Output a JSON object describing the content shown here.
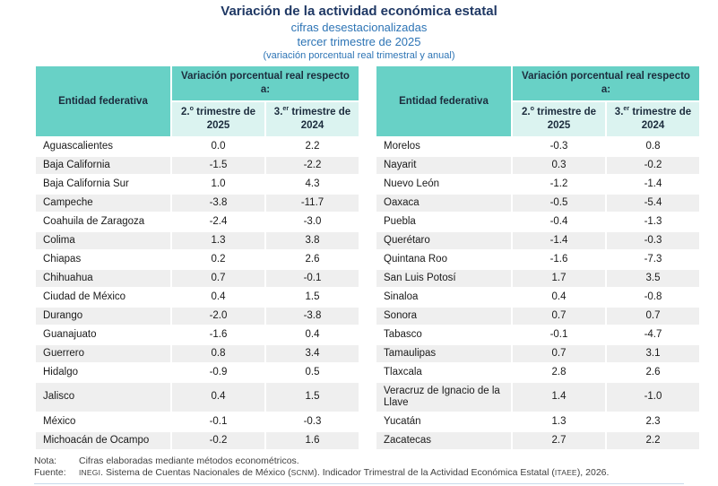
{
  "header": {
    "title": "Variación de la actividad económica estatal",
    "subtitle1": "cifras desestacionalizadas",
    "subtitle2": "tercer trimestre de 2025",
    "subtitle3": "(variación porcentual real trimestral y anual)"
  },
  "table_header": {
    "entity": "Entidad federativa",
    "group": "Variación porcentual real respecto a:",
    "q2": {
      "base": "2.",
      "sup": "o",
      "rest": "trimestre de 2025"
    },
    "q3": {
      "base": "3.",
      "sup": "er",
      "rest": "trimestre de 2024"
    }
  },
  "tables": [
    {
      "rows": [
        [
          "Aguascalientes",
          "0.0",
          "2.2"
        ],
        [
          "Baja California",
          "-1.5",
          "-2.2"
        ],
        [
          "Baja California Sur",
          "1.0",
          "4.3"
        ],
        [
          "Campeche",
          "-3.8",
          "-11.7"
        ],
        [
          "Coahuila de Zaragoza",
          "-2.4",
          "-3.0"
        ],
        [
          "Colima",
          "1.3",
          "3.8"
        ],
        [
          "Chiapas",
          "0.2",
          "2.6"
        ],
        [
          "Chihuahua",
          "0.7",
          "-0.1"
        ],
        [
          "Ciudad de México",
          "0.4",
          "1.5"
        ],
        [
          "Durango",
          "-2.0",
          "-3.8"
        ],
        [
          "Guanajuato",
          "-1.6",
          "0.4"
        ],
        [
          "Guerrero",
          "0.8",
          "3.4"
        ],
        [
          "Hidalgo",
          "-0.9",
          "0.5"
        ],
        [
          "Jalisco",
          "0.4",
          "1.5"
        ],
        [
          "México",
          "-0.1",
          "-0.3"
        ],
        [
          "Michoacán de Ocampo",
          "-0.2",
          "1.6"
        ]
      ]
    },
    {
      "rows": [
        [
          "Morelos",
          "-0.3",
          "0.8"
        ],
        [
          "Nayarit",
          "0.3",
          "-0.2"
        ],
        [
          "Nuevo León",
          "-1.2",
          "-1.4"
        ],
        [
          "Oaxaca",
          "-0.5",
          "-5.4"
        ],
        [
          "Puebla",
          "-0.4",
          "-1.3"
        ],
        [
          "Querétaro",
          "-1.4",
          "-0.3"
        ],
        [
          "Quintana Roo",
          "-1.6",
          "-7.3"
        ],
        [
          "San Luis Potosí",
          "1.7",
          "3.5"
        ],
        [
          "Sinaloa",
          "0.4",
          "-0.8"
        ],
        [
          "Sonora",
          "0.7",
          "0.7"
        ],
        [
          "Tabasco",
          "-0.1",
          "-4.7"
        ],
        [
          "Tamaulipas",
          "0.7",
          "3.1"
        ],
        [
          "Tlaxcala",
          "2.8",
          "2.6"
        ],
        [
          "Veracruz de Ignacio de la Llave",
          "1.4",
          "-1.0"
        ],
        [
          "Yucatán",
          "1.3",
          "2.3"
        ],
        [
          "Zacatecas",
          "2.7",
          "2.2"
        ]
      ]
    }
  ],
  "footer": {
    "nota_label": "Nota:",
    "nota_text": "Cifras elaboradas mediante métodos econométricos.",
    "fuente_label": "Fuente:",
    "fuente_parts": [
      "INEGI",
      ". Sistema de Cuentas Nacionales de México (",
      "SCNM",
      "). Indicador Trimestral de la Actividad Económica Estatal (",
      "ITAEE",
      "), 2026."
    ]
  },
  "colors": {
    "header_teal": "#68d1c6",
    "subheader_teal": "#dbf3f0",
    "stripe_gray": "#efefef",
    "title_navy": "#1f3864",
    "subtitle_blue": "#2d74b5"
  }
}
